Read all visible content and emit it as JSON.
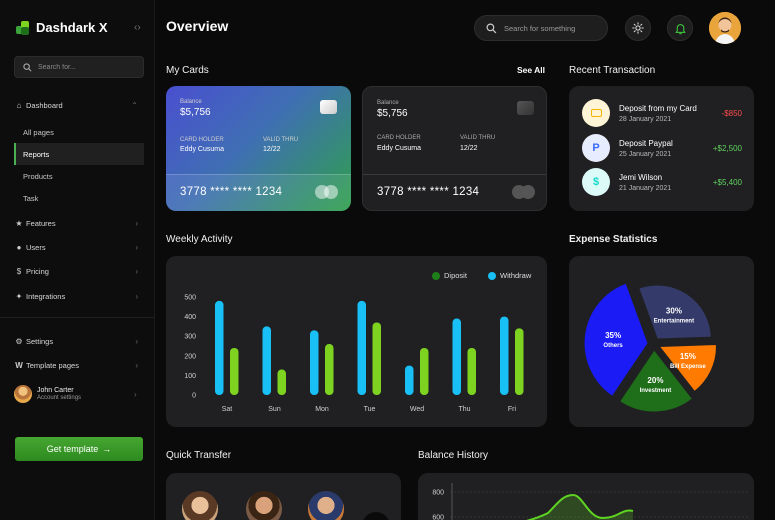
{
  "app": {
    "title": "Dashdark X"
  },
  "sidebar": {
    "search_placeholder": "Search for...",
    "dashboard": "Dashboard",
    "sub_items": [
      "All pages",
      "Reports",
      "Products",
      "Task"
    ],
    "items": [
      "Features",
      "Users",
      "Pricing",
      "Integrations"
    ],
    "settings": "Settings",
    "template_pages": "Template pages",
    "user": {
      "name": "John Carter",
      "subtitle": "Account settings"
    },
    "cta": "Get template"
  },
  "header": {
    "title": "Overview",
    "search_placeholder": "Search for something"
  },
  "cards_section": {
    "title": "My Cards",
    "see_all": "See All",
    "cards": [
      {
        "balance_label": "Balance",
        "balance": "$5,756",
        "holder_label": "CARD HOLDER",
        "holder": "Eddy Cusuma",
        "thru_label": "VALID THRU",
        "thru": "12/22",
        "number": "3778 **** **** 1234"
      },
      {
        "balance_label": "Balance",
        "balance": "$5,756",
        "holder_label": "CARD HOLDER",
        "holder": "Eddy Cusuma",
        "thru_label": "VALID THRU",
        "thru": "12/22",
        "number": "3778 **** **** 1234"
      }
    ]
  },
  "recent": {
    "title": "Recent Transaction",
    "items": [
      {
        "name": "Deposit from my Card",
        "date": "28 January 2021",
        "amount": "-$850",
        "color": "#ff4d4d",
        "icon": "card-icon"
      },
      {
        "name": "Deposit Paypal",
        "date": "25 January 2021",
        "amount": "+$2,500",
        "color": "#5fd35f",
        "icon": "paypal-icon"
      },
      {
        "name": "Jemi Wilson",
        "date": "21 January 2021",
        "amount": "+$5,400",
        "color": "#5fd35f",
        "icon": "dollar-icon"
      }
    ]
  },
  "weekly": {
    "title": "Weekly Activity",
    "legend": [
      "Diposit",
      "Withdraw"
    ]
  },
  "chart_data": [
    {
      "type": "bar",
      "categories": [
        "Sat",
        "Sun",
        "Mon",
        "Tue",
        "Wed",
        "Thu",
        "Fri"
      ],
      "series": [
        {
          "name": "Diposit",
          "values": [
            240,
            130,
            260,
            370,
            240,
            240,
            340
          ],
          "color": "#7ed321"
        },
        {
          "name": "Withdraw",
          "values": [
            480,
            350,
            330,
            480,
            150,
            390,
            400
          ],
          "color": "#18c0f5"
        }
      ],
      "yticks": [
        0,
        100,
        200,
        300,
        400,
        500
      ],
      "ylim": [
        0,
        500
      ]
    },
    {
      "type": "pie",
      "labels": [
        "Entertainment",
        "Bill Expense",
        "Investment",
        "Others"
      ],
      "values": [
        30,
        15,
        20,
        35
      ],
      "display": [
        "30%",
        "15%",
        "20%",
        "35%"
      ],
      "colors": [
        "#343b6b",
        "#ff7a00",
        "#1e6e1a",
        "#1b1bf5"
      ]
    },
    {
      "type": "area",
      "yticks": [
        800,
        600
      ]
    }
  ],
  "expense": {
    "title": "Expense Statistics"
  },
  "quick_transfer": {
    "title": "Quick Transfer"
  },
  "balance_history": {
    "title": "Balance History"
  }
}
